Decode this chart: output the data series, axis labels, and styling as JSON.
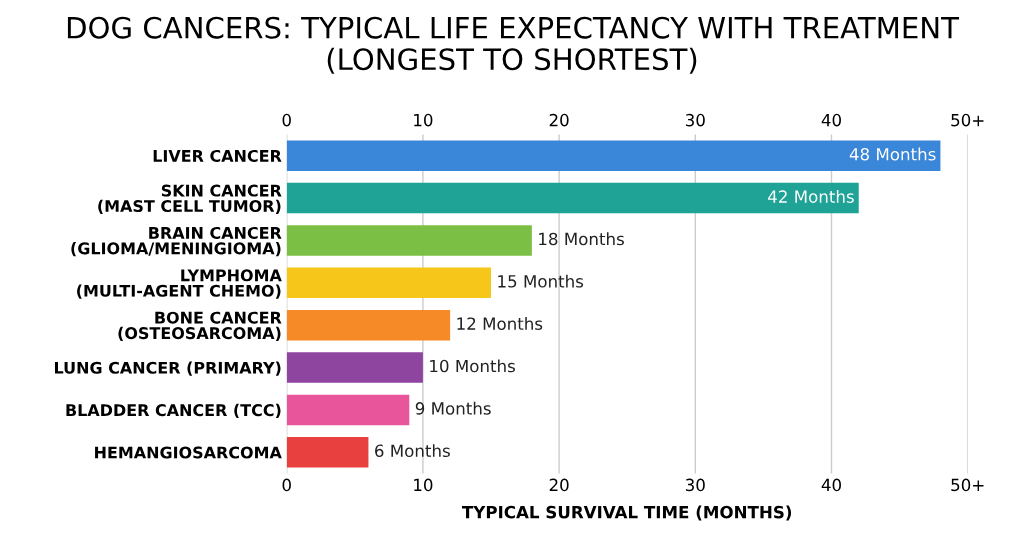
{
  "chart_data": {
    "type": "bar",
    "orientation": "horizontal",
    "title": "DOG CANCERS: TYPICAL LIFE EXPECTANCY WITH TREATMENT\n(LONGEST TO SHORTEST)",
    "xlabel": "TYPICAL SURVIVAL TIME (MONTHS)",
    "categories": [
      "LIVER CANCER",
      "SKIN CANCER\n(MAST CELL TUMOR)",
      "BRAIN CANCER\n(GLIOMA/MENINGIOMA)",
      "LYMPHOMA\n(MULTI-AGENT CHEMO)",
      "BONE CANCER\n(OSTEOSARCOMA)",
      "LUNG CANCER (PRIMARY)",
      "BLADDER CANCER (TCC)",
      "HEMANGIOSARCOMA"
    ],
    "values": [
      48,
      42,
      18,
      15,
      12,
      10,
      9,
      6
    ],
    "colors": [
      "#3a86d8",
      "#1ea396",
      "#7cbf45",
      "#f6c61a",
      "#f58a26",
      "#8e459f",
      "#e8559b",
      "#e8403e"
    ],
    "value_labels": [
      "48 Months",
      "42 Months",
      "18 Months",
      "15 Months",
      "12 Months",
      "10 Months",
      "9 Months",
      "6 Months"
    ],
    "xlim": [
      0,
      50
    ],
    "xticks": [
      0,
      10,
      20,
      30,
      40,
      {
        "value": 50,
        "label": "50+"
      }
    ],
    "x2lim": [
      0,
      50
    ],
    "x2ticks": [
      0,
      10,
      20,
      30,
      40,
      {
        "value": 50,
        "label": "50+"
      }
    ],
    "grid": "x",
    "legend": false
  }
}
